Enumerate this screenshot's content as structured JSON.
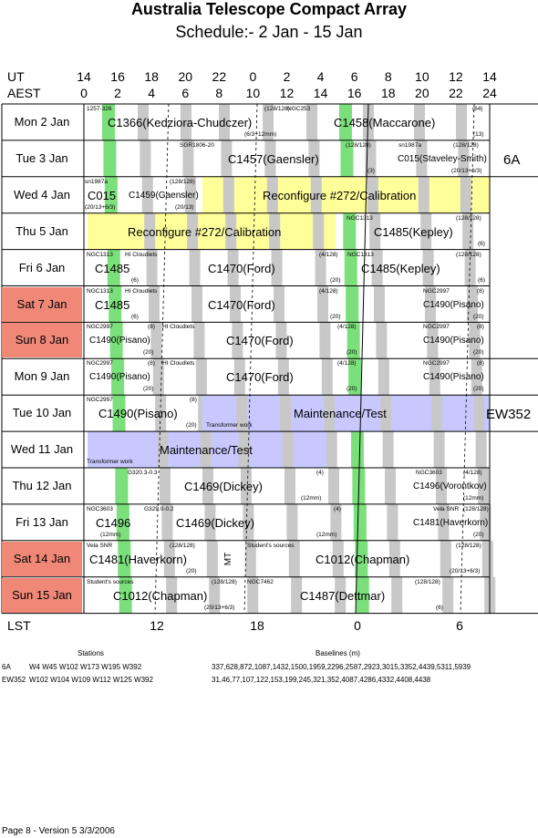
{
  "title": "Australia Telescope Compact Array",
  "subtitle": "Schedule:- 2  Jan - 15 Jan",
  "axes": {
    "ut_label": "UT",
    "aest_label": "AEST",
    "lst_label": "LST",
    "ut_ticks": [
      "14",
      "16",
      "18",
      "20",
      "22",
      "0",
      "2",
      "4",
      "6",
      "8",
      "10",
      "12",
      "14"
    ],
    "aest_ticks": [
      "0",
      "2",
      "4",
      "6",
      "8",
      "10",
      "12",
      "14",
      "16",
      "18",
      "20",
      "22",
      "24"
    ],
    "lst_ticks": [
      "12",
      "18",
      "0",
      "6"
    ]
  },
  "days": [
    {
      "label": "Mon   2  Jan",
      "weekend": false
    },
    {
      "label": "Tue   3  Jan",
      "weekend": false
    },
    {
      "label": "Wed   4  Jan",
      "weekend": false
    },
    {
      "label": "Thu   5  Jan",
      "weekend": false
    },
    {
      "label": "Fri   6  Jan",
      "weekend": false
    },
    {
      "label": "Sat   7  Jan",
      "weekend": true
    },
    {
      "label": "Sun   8  Jan",
      "weekend": true
    },
    {
      "label": "Mon   9  Jan",
      "weekend": false
    },
    {
      "label": "Tue   10  Jan",
      "weekend": false
    },
    {
      "label": "Wed   11  Jan",
      "weekend": false
    },
    {
      "label": "Thu   12  Jan",
      "weekend": false
    },
    {
      "label": "Fri   13  Jan",
      "weekend": false
    },
    {
      "label": "Sat   14  Jan",
      "weekend": true
    },
    {
      "label": "Sun   15  Jan",
      "weekend": true
    }
  ],
  "programs": [
    {
      "row": 0,
      "x": 118,
      "text": "C1366(Kedziora-Chudczer)"
    },
    {
      "row": 0,
      "x": 366,
      "text": "C1458(Maccarone)"
    },
    {
      "row": 1,
      "x": 250,
      "text": "C1457(Gaensler)"
    },
    {
      "row": 1,
      "x": 436,
      "text": "C015(Staveley-Smith)",
      "small": true
    },
    {
      "row": 2,
      "x": 96,
      "text": "C015"
    },
    {
      "row": 2,
      "x": 141,
      "text": "C1459(Gaensler)",
      "small": true
    },
    {
      "row": 2,
      "x": 288,
      "text": "Reconfigure #272/Calibration"
    },
    {
      "row": 3,
      "x": 140,
      "text": "Reconfigure #272/Calibration"
    },
    {
      "row": 3,
      "x": 410,
      "text": "C1485(Kepley)"
    },
    {
      "row": 4,
      "x": 104,
      "text": "C1485"
    },
    {
      "row": 4,
      "x": 228,
      "text": "C1470(Ford)"
    },
    {
      "row": 4,
      "x": 396,
      "text": "C1485(Kepley)"
    },
    {
      "row": 5,
      "x": 104,
      "text": "C1485"
    },
    {
      "row": 5,
      "x": 228,
      "text": "C1470(Ford)"
    },
    {
      "row": 5,
      "x": 464,
      "text": "C1490(Pisano)",
      "small": true
    },
    {
      "row": 6,
      "x": 98,
      "text": "C1490(Pisano)",
      "small": true
    },
    {
      "row": 6,
      "x": 248,
      "text": "C1470(Ford)"
    },
    {
      "row": 6,
      "x": 464,
      "text": "C1490(Pisano)",
      "small": true
    },
    {
      "row": 7,
      "x": 98,
      "text": "C1490(Pisano)",
      "small": true
    },
    {
      "row": 7,
      "x": 248,
      "text": "C1470(Ford)"
    },
    {
      "row": 7,
      "x": 464,
      "text": "C1490(Pisano)",
      "small": true
    },
    {
      "row": 8,
      "x": 108,
      "text": "C1490(Pisano)"
    },
    {
      "row": 8,
      "x": 322,
      "text": "Maintenance/Test"
    },
    {
      "row": 9,
      "x": 175,
      "text": "Maintenance/Test"
    },
    {
      "row": 10,
      "x": 202,
      "text": "C1469(Dickey)"
    },
    {
      "row": 10,
      "x": 453,
      "text": "C1496(Vorontkov)",
      "small": true
    },
    {
      "row": 11,
      "x": 105,
      "text": "C1496"
    },
    {
      "row": 11,
      "x": 193,
      "text": "C1469(Dickey)"
    },
    {
      "row": 11,
      "x": 453,
      "text": "C1481(Haverkorn)",
      "small": true
    },
    {
      "row": 12,
      "x": 98,
      "text": "C1481(Haverkorn)"
    },
    {
      "row": 12,
      "x": 346,
      "text": "C1012(Chapman)"
    },
    {
      "row": 13,
      "x": 124,
      "text": "C1012(Chapman)"
    },
    {
      "row": 13,
      "x": 329,
      "text": "C1487(Dettmar)"
    }
  ],
  "tags": [
    {
      "row": 0,
      "x": 95,
      "t": 1,
      "text": "1257-326"
    },
    {
      "row": 0,
      "x": 290,
      "t": 1,
      "text": "(128/128)"
    },
    {
      "row": 0,
      "x": 315,
      "t": 1,
      "text": "NGC253"
    },
    {
      "row": 0,
      "x": 518,
      "t": 1,
      "text": "(64)"
    },
    {
      "row": 0,
      "x": 268,
      "t": 0,
      "text": "(6/3+12mm)"
    },
    {
      "row": 0,
      "x": 519,
      "t": 0,
      "text": "(13)"
    },
    {
      "row": 1,
      "x": 197,
      "t": 1,
      "text": "SGR1806-20"
    },
    {
      "row": 1,
      "x": 379,
      "t": 1,
      "text": "(128/128)"
    },
    {
      "row": 1,
      "x": 437,
      "t": 1,
      "text": "sn1987a"
    },
    {
      "row": 1,
      "x": 497,
      "t": 1,
      "text": "(128/128)"
    },
    {
      "row": 1,
      "x": 403,
      "t": 0,
      "text": "(3)"
    },
    {
      "row": 1,
      "x": 495,
      "t": 0,
      "text": "(20/13+6/3)"
    },
    {
      "row": 2,
      "x": 93,
      "t": 1,
      "text": "sn1987a"
    },
    {
      "row": 2,
      "x": 186,
      "t": 1,
      "text": "(128/128)"
    },
    {
      "row": 2,
      "x": 93,
      "t": 0,
      "text": "(20/13+6/3)"
    },
    {
      "row": 2,
      "x": 192,
      "t": 0,
      "text": "(20/13)"
    },
    {
      "row": 3,
      "x": 380,
      "t": 1,
      "text": "NGC1313"
    },
    {
      "row": 3,
      "x": 500,
      "t": 1,
      "text": "(128/128)"
    },
    {
      "row": 3,
      "x": 524,
      "t": 0,
      "text": "(6)"
    },
    {
      "row": 4,
      "x": 95,
      "t": 1,
      "text": "NGC1313"
    },
    {
      "row": 4,
      "x": 137,
      "t": 1,
      "text": "HI Cloudlets"
    },
    {
      "row": 4,
      "x": 350,
      "t": 1,
      "text": "(4/128)"
    },
    {
      "row": 4,
      "x": 381,
      "t": 1,
      "text": "NGC1313"
    },
    {
      "row": 4,
      "x": 500,
      "t": 1,
      "text": "(128/128)"
    },
    {
      "row": 4,
      "x": 144,
      "t": 0,
      "text": "(6)"
    },
    {
      "row": 4,
      "x": 362,
      "t": 0,
      "text": "(20)"
    },
    {
      "row": 4,
      "x": 524,
      "t": 0,
      "text": "(6)"
    },
    {
      "row": 5,
      "x": 95,
      "t": 1,
      "text": "NGC1313"
    },
    {
      "row": 5,
      "x": 137,
      "t": 1,
      "text": "HI Cloudlets"
    },
    {
      "row": 5,
      "x": 350,
      "t": 1,
      "text": "(4/128)"
    },
    {
      "row": 5,
      "x": 464,
      "t": 1,
      "text": "NGC2997"
    },
    {
      "row": 5,
      "x": 523,
      "t": 1,
      "text": "(8)"
    },
    {
      "row": 5,
      "x": 144,
      "t": 0,
      "text": "(6)"
    },
    {
      "row": 5,
      "x": 362,
      "t": 0,
      "text": "(20)"
    },
    {
      "row": 5,
      "x": 519,
      "t": 0,
      "text": "(20)"
    },
    {
      "row": 6,
      "x": 95,
      "t": 1,
      "text": "NGC2997"
    },
    {
      "row": 6,
      "x": 162,
      "t": 1,
      "text": "(8)"
    },
    {
      "row": 6,
      "x": 178,
      "t": 1,
      "text": "HI Cloudlets"
    },
    {
      "row": 6,
      "x": 370,
      "t": 1,
      "text": "(4/128)"
    },
    {
      "row": 6,
      "x": 464,
      "t": 1,
      "text": "NGC2997"
    },
    {
      "row": 6,
      "x": 523,
      "t": 1,
      "text": "(8)"
    },
    {
      "row": 6,
      "x": 157,
      "t": 0,
      "text": "(20)"
    },
    {
      "row": 6,
      "x": 380,
      "t": 0,
      "text": "(20)"
    },
    {
      "row": 6,
      "x": 519,
      "t": 0,
      "text": "(20)"
    },
    {
      "row": 7,
      "x": 95,
      "t": 1,
      "text": "NGC2997"
    },
    {
      "row": 7,
      "x": 162,
      "t": 1,
      "text": "(8)"
    },
    {
      "row": 7,
      "x": 178,
      "t": 1,
      "text": "HI Cloudlets"
    },
    {
      "row": 7,
      "x": 370,
      "t": 1,
      "text": "(4/128)"
    },
    {
      "row": 7,
      "x": 464,
      "t": 1,
      "text": "NGC2997"
    },
    {
      "row": 7,
      "x": 523,
      "t": 1,
      "text": "(8)"
    },
    {
      "row": 7,
      "x": 157,
      "t": 0,
      "text": "(20)"
    },
    {
      "row": 7,
      "x": 380,
      "t": 0,
      "text": "(20)"
    },
    {
      "row": 7,
      "x": 519,
      "t": 0,
      "text": "(20)"
    },
    {
      "row": 8,
      "x": 95,
      "t": 1,
      "text": "NGC2997"
    },
    {
      "row": 8,
      "x": 208,
      "t": 1,
      "text": "(8)"
    },
    {
      "row": 8,
      "x": 204,
      "t": 0,
      "text": "(20)"
    },
    {
      "row": 8,
      "x": 226,
      "t": 0,
      "text": "Transformer work"
    },
    {
      "row": 9,
      "x": 95,
      "t": 0,
      "text": "Transformer work"
    },
    {
      "row": 10,
      "x": 140,
      "t": 1,
      "text": "G320.3-0.3"
    },
    {
      "row": 10,
      "x": 347,
      "t": 1,
      "text": "(4)"
    },
    {
      "row": 10,
      "x": 456,
      "t": 1,
      "text": "NGC3603"
    },
    {
      "row": 10,
      "x": 508,
      "t": 1,
      "text": "(4/128)"
    },
    {
      "row": 10,
      "x": 330,
      "t": 0,
      "text": "(12mm)"
    },
    {
      "row": 10,
      "x": 508,
      "t": 0,
      "text": "(12mm)"
    },
    {
      "row": 11,
      "x": 95,
      "t": 1,
      "text": "NGC3603"
    },
    {
      "row": 11,
      "x": 158,
      "t": 1,
      "text": "G329.0-0.2"
    },
    {
      "row": 11,
      "x": 366,
      "t": 1,
      "text": "(4)"
    },
    {
      "row": 11,
      "x": 475,
      "t": 1,
      "text": "Vela SNR"
    },
    {
      "row": 11,
      "x": 508,
      "t": 1,
      "text": "(128/128)"
    },
    {
      "row": 11,
      "x": 110,
      "t": 0,
      "text": "(12mm)"
    },
    {
      "row": 11,
      "x": 347,
      "t": 0,
      "text": "(12mm)"
    },
    {
      "row": 11,
      "x": 519,
      "t": 0,
      "text": "(20)"
    },
    {
      "row": 12,
      "x": 95,
      "t": 1,
      "text": "Vela SNR"
    },
    {
      "row": 12,
      "x": 186,
      "t": 1,
      "text": "(128/128)"
    },
    {
      "row": 12,
      "x": 271,
      "t": 1,
      "text": "Student's sources"
    },
    {
      "row": 12,
      "x": 500,
      "t": 1,
      "text": "(128/128)"
    },
    {
      "row": 12,
      "x": 204,
      "t": 0,
      "text": "(20)"
    },
    {
      "row": 12,
      "x": 493,
      "t": 0,
      "text": "(20/13+6/3)"
    },
    {
      "row": 13,
      "x": 95,
      "t": 1,
      "text": "Student's sources"
    },
    {
      "row": 13,
      "x": 232,
      "t": 1,
      "text": "(128/128)"
    },
    {
      "row": 13,
      "x": 271,
      "t": 1,
      "text": "NGC7462"
    },
    {
      "row": 13,
      "x": 455,
      "t": 1,
      "text": "(128/128)"
    },
    {
      "row": 13,
      "x": 224,
      "t": 0,
      "text": "(20/13+6/3)"
    },
    {
      "row": 13,
      "x": 478,
      "t": 0,
      "text": "(6)"
    }
  ],
  "configs": [
    {
      "label": "6A",
      "x": 552,
      "y": 168
    },
    {
      "label": "EW352",
      "x": 533,
      "y": 447
    }
  ],
  "mt_label": "MT",
  "stations": {
    "heading": "Stations",
    "baselines_heading": "Baselines (m)",
    "rows": [
      {
        "config": "6A",
        "stations": "W4  W45  W102  W173  W195  W392",
        "baselines": "337,628,872,1087,1432,1500,1959,2296,2587,2923,3015,3352,4439,5311,5939"
      },
      {
        "config": "EW352",
        "stations": "W102  W104  W109  W112  W125  W392",
        "baselines": "31,46,77,107,122,153,199,245,321,352,4087,4286,4332,4408,4438"
      }
    ]
  },
  "footer": "Page 8 - Version 5  3/3/2006",
  "colors": {
    "green": "#7be07b",
    "gray": "#c8c8c8",
    "yellow": "#ffff9a",
    "blue": "#c8c8ff",
    "weekend": "#f08878"
  }
}
